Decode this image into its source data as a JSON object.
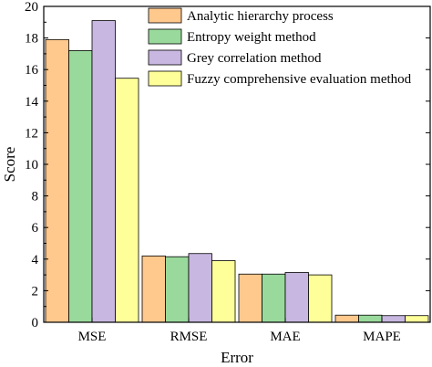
{
  "chart_data": {
    "type": "bar",
    "xlabel": "Error",
    "ylabel": "Score",
    "ylim": [
      0,
      20
    ],
    "yticks": [
      0,
      2,
      4,
      6,
      8,
      10,
      12,
      14,
      16,
      18,
      20
    ],
    "categories": [
      "MSE",
      "RMSE",
      "MAE",
      "MAPE"
    ],
    "legend_position": "top-right",
    "grid": false,
    "series": [
      {
        "name": "Analytic hierarchy process",
        "color": "#FFC88C",
        "values": [
          17.9,
          4.2,
          3.05,
          0.45
        ]
      },
      {
        "name": "Entropy weight method",
        "color": "#99D99B",
        "values": [
          17.2,
          4.15,
          3.05,
          0.45
        ]
      },
      {
        "name": "Grey correlation method",
        "color": "#C8B7E0",
        "values": [
          19.1,
          4.35,
          3.15,
          0.42
        ]
      },
      {
        "name": "Fuzzy comprehensive evaluation method",
        "color": "#FFFF99",
        "values": [
          15.45,
          3.9,
          3.0,
          0.42
        ]
      }
    ]
  }
}
